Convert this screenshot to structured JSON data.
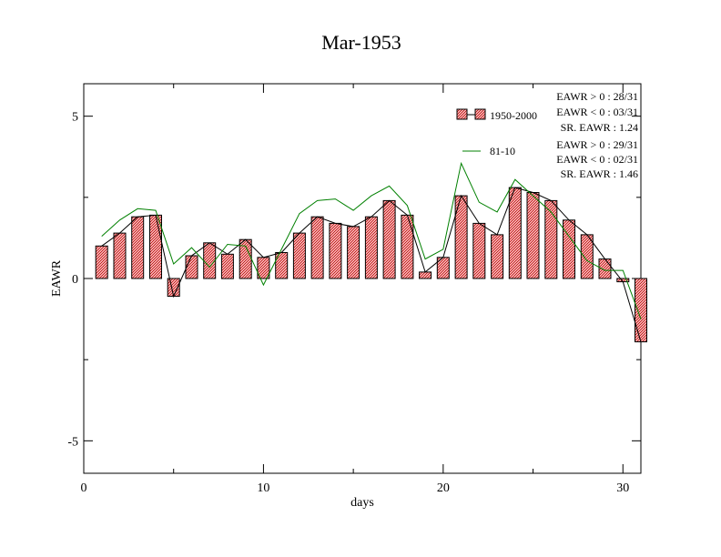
{
  "chart_data": {
    "type": "bar",
    "title": "Mar-1953",
    "xlabel": "days",
    "ylabel": "EAWR",
    "xlim": [
      0,
      31
    ],
    "ylim": [
      -6,
      6
    ],
    "x_ticks": [
      0,
      10,
      20,
      30
    ],
    "y_ticks": [
      -5,
      0,
      5
    ],
    "x_tick_labels": [
      "0",
      "10",
      "20",
      "30"
    ],
    "y_tick_labels": [
      "-5",
      "0",
      "5"
    ],
    "grid": false,
    "legend_position": "top-right",
    "days": [
      1,
      2,
      3,
      4,
      5,
      6,
      7,
      8,
      9,
      10,
      11,
      12,
      13,
      14,
      15,
      16,
      17,
      18,
      19,
      20,
      21,
      22,
      23,
      24,
      25,
      26,
      27,
      28,
      29,
      30,
      31
    ],
    "series": [
      {
        "name": "1950-2000",
        "kind": "bar",
        "color": "#e06060",
        "values": [
          1.0,
          1.4,
          1.9,
          1.95,
          -0.55,
          0.7,
          1.1,
          0.75,
          1.2,
          0.65,
          0.8,
          1.4,
          1.9,
          1.7,
          1.6,
          1.9,
          2.4,
          1.95,
          0.2,
          0.65,
          2.55,
          1.7,
          1.35,
          2.8,
          2.65,
          2.4,
          1.8,
          1.35,
          0.6,
          -0.1,
          -1.95
        ]
      },
      {
        "name": "",
        "kind": "line",
        "color": "#000000",
        "values": [
          1.0,
          1.4,
          1.9,
          1.95,
          -0.55,
          0.7,
          1.1,
          0.75,
          1.2,
          0.65,
          0.8,
          1.4,
          1.9,
          1.7,
          1.6,
          1.9,
          2.4,
          1.95,
          0.2,
          0.65,
          2.55,
          1.7,
          1.35,
          2.8,
          2.65,
          2.4,
          1.8,
          1.35,
          0.6,
          -0.1,
          -1.95
        ]
      },
      {
        "name": "81-10",
        "kind": "line",
        "color": "#008000",
        "values": [
          1.3,
          1.8,
          2.15,
          2.1,
          0.45,
          0.95,
          0.35,
          1.05,
          1.0,
          -0.2,
          0.9,
          2.0,
          2.4,
          2.45,
          2.1,
          2.55,
          2.85,
          2.25,
          0.6,
          0.9,
          3.55,
          2.35,
          2.05,
          3.05,
          2.55,
          2.05,
          1.3,
          0.55,
          0.25,
          0.25,
          -1.25
        ]
      }
    ],
    "stats_1950_2000": [
      "EAWR > 0 : 28/31",
      "EAWR < 0 : 03/31",
      "SR. EAWR :  1.24"
    ],
    "stats_81_10": [
      "EAWR > 0 : 29/31",
      "EAWR < 0 : 02/31",
      "SR. EAWR :  1.46"
    ]
  }
}
